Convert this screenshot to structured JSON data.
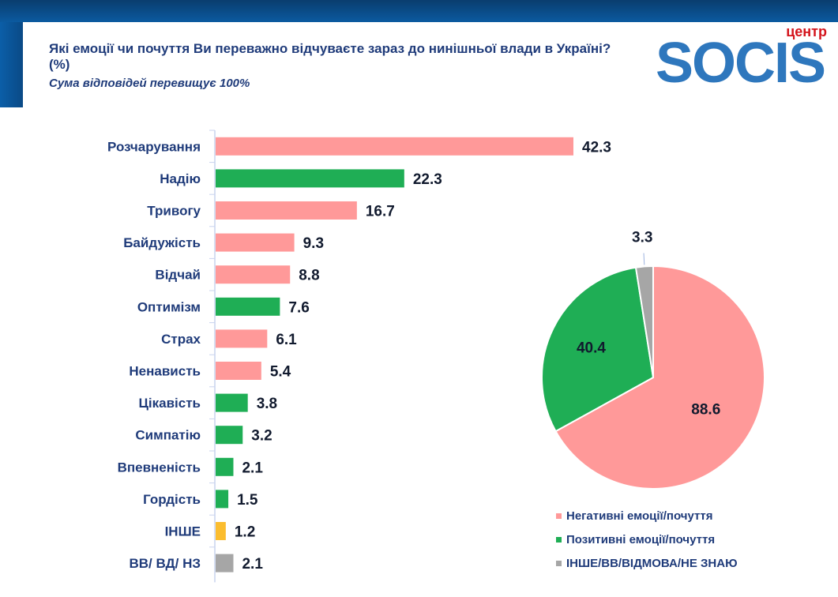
{
  "header": {
    "title": "Які емоції чи почуття Ви переважно відчуваєте зараз до нинішньої влади в Україні? (%)",
    "subtitle": "Сума відповідей перевищує 100%"
  },
  "logo": {
    "top_text": "центр",
    "main_text": "SOCIS"
  },
  "colors": {
    "negative": "#ff9999",
    "positive": "#1fae55",
    "other": "#fbbd2f",
    "dk": "#a6a6a6"
  },
  "chart_data": [
    {
      "type": "bar",
      "orientation": "horizontal",
      "title": "",
      "xlabel": "",
      "ylabel": "",
      "xlim": [
        0,
        45
      ],
      "grid": false,
      "categories": [
        "Розчарування",
        "Надію",
        "Тривогу",
        "Байдужість",
        "Відчай",
        "Оптимізм",
        "Страх",
        "Ненависть",
        "Цікавість",
        "Симпатію",
        "Впевненість",
        "Гордість",
        "ІНШЕ",
        "ВВ/ ВД/ НЗ"
      ],
      "values": [
        42.3,
        22.3,
        16.7,
        9.3,
        8.8,
        7.6,
        6.1,
        5.4,
        3.8,
        3.2,
        2.1,
        1.5,
        1.2,
        2.1
      ],
      "groups": [
        "negative",
        "positive",
        "negative",
        "negative",
        "negative",
        "positive",
        "negative",
        "negative",
        "positive",
        "positive",
        "positive",
        "positive",
        "other",
        "dk"
      ]
    },
    {
      "type": "pie",
      "title": "",
      "slices": [
        {
          "label": "Негативні емоції/почуття",
          "value": 88.6,
          "group": "negative"
        },
        {
          "label": "Позитивні емоції/почуття",
          "value": 40.4,
          "group": "positive"
        },
        {
          "label": "ІНШЕ/ВВ/ВІДМОВА/НЕ ЗНАЮ",
          "value": 3.3,
          "group": "dk"
        }
      ],
      "legend_position": "bottom"
    }
  ]
}
